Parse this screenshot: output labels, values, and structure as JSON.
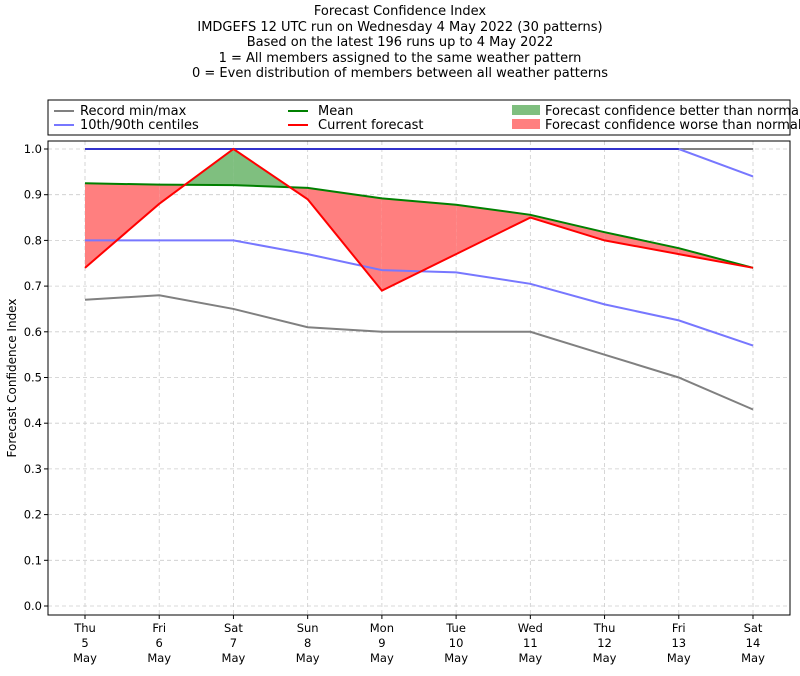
{
  "title_lines": [
    "Forecast Confidence Index",
    "IMDGEFS 12 UTC run on Wednesday 4 May 2022 (30 patterns)",
    "Based on the latest 196 runs up to 4 May 2022",
    "1 = All members assigned to the same weather pattern",
    "0 = Even distribution of members between all weather patterns"
  ],
  "legend": {
    "record": "Record min/max",
    "centiles": "10th/90th centiles",
    "mean": "Mean",
    "current": "Current forecast",
    "better": "Forecast confidence better than normal",
    "worse": "Forecast confidence worse than normal"
  },
  "colors": {
    "record": "#808080",
    "centile": "#7777ff",
    "top_line": "#3333cc",
    "mean": "#008000",
    "current": "#ff0000",
    "better_fill": "#7fbf7f",
    "worse_fill": "#ff7f7f",
    "grid": "#cccccc"
  },
  "chart_data": {
    "type": "line",
    "ylabel": "Forecast Confidence Index",
    "xlabel": "",
    "ylim": [
      0,
      1
    ],
    "yticks": [
      "0.0",
      "0.1",
      "0.2",
      "0.3",
      "0.4",
      "0.5",
      "0.6",
      "0.7",
      "0.8",
      "0.9",
      "1.0"
    ],
    "grid": true,
    "legend_position": "top",
    "categories": [
      [
        "Thu",
        "5",
        "May"
      ],
      [
        "Fri",
        "6",
        "May"
      ],
      [
        "Sat",
        "7",
        "May"
      ],
      [
        "Sun",
        "8",
        "May"
      ],
      [
        "Mon",
        "9",
        "May"
      ],
      [
        "Tue",
        "10",
        "May"
      ],
      [
        "Wed",
        "11",
        "May"
      ],
      [
        "Thu",
        "12",
        "May"
      ],
      [
        "Fri",
        "13",
        "May"
      ],
      [
        "Sat",
        "14",
        "May"
      ]
    ],
    "series": [
      {
        "name": "Record max",
        "values": [
          1.0,
          1.0,
          1.0,
          1.0,
          1.0,
          1.0,
          1.0,
          1.0,
          1.0,
          1.0
        ]
      },
      {
        "name": "Record min",
        "values": [
          0.67,
          0.68,
          0.65,
          0.61,
          0.6,
          0.6,
          0.6,
          0.55,
          0.5,
          0.43
        ]
      },
      {
        "name": "90th centile",
        "values": [
          1.0,
          1.0,
          1.0,
          1.0,
          1.0,
          1.0,
          1.0,
          1.0,
          1.0,
          0.94
        ]
      },
      {
        "name": "10th centile",
        "values": [
          0.8,
          0.8,
          0.8,
          0.77,
          0.735,
          0.73,
          0.705,
          0.66,
          0.625,
          0.57
        ]
      },
      {
        "name": "Mean",
        "values": [
          0.925,
          0.922,
          0.921,
          0.915,
          0.892,
          0.878,
          0.856,
          0.818,
          0.783,
          0.74
        ]
      },
      {
        "name": "Current forecast",
        "values": [
          0.74,
          0.88,
          1.0,
          0.89,
          0.69,
          0.77,
          0.85,
          0.8,
          0.77,
          0.74
        ]
      }
    ]
  }
}
